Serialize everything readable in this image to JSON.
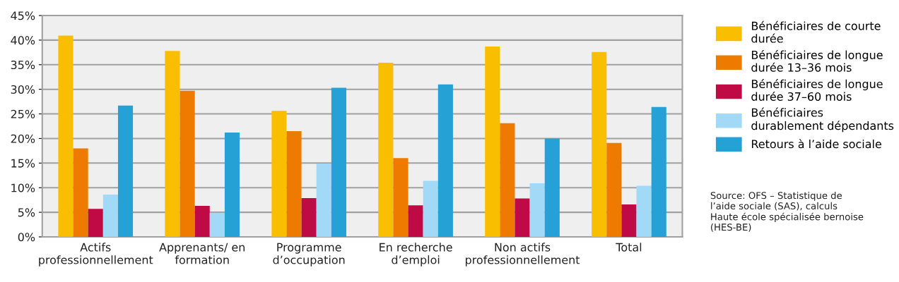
{
  "chart_data": {
    "type": "bar",
    "categories": [
      "Actifs professionnellement",
      "Apprenants/ en formation",
      "Programme d’occupation",
      "En recherche d’emploi",
      "Non actifs professionnellement",
      "Total"
    ],
    "series": [
      {
        "name": "Bénéficiaires de courte durée",
        "color": "#f9be00",
        "values": [
          40.9,
          37.8,
          25.6,
          35.4,
          38.7,
          37.6
        ]
      },
      {
        "name": "Bénéficiaires de longue durée 13–36 mois",
        "color": "#ee7b00",
        "values": [
          18.0,
          29.7,
          21.5,
          16.0,
          23.1,
          19.1
        ]
      },
      {
        "name": "Bénéficiaires de longue durée 37–60 mois",
        "color": "#c00a45",
        "values": [
          5.7,
          6.3,
          7.9,
          6.4,
          7.8,
          6.6
        ]
      },
      {
        "name": "Bénéficiaires durablement dépendants",
        "color": "#a2d9f7",
        "values": [
          8.6,
          4.9,
          14.9,
          11.4,
          10.9,
          10.4
        ]
      },
      {
        "name": "Retours à l’aide sociale",
        "color": "#26a1d5",
        "values": [
          26.7,
          21.2,
          30.3,
          31.0,
          20.0,
          26.4
        ]
      }
    ],
    "ylim": [
      0,
      45
    ],
    "yticks": [
      {
        "value": 0,
        "label": "0%"
      },
      {
        "value": 5,
        "label": "5%"
      },
      {
        "value": 10,
        "label": "10%"
      },
      {
        "value": 15,
        "label": "15%"
      },
      {
        "value": 20,
        "label": "20%"
      },
      {
        "value": 25,
        "label": "25%"
      },
      {
        "value": 30,
        "label": "30%"
      },
      {
        "value": 35,
        "label": "35%"
      },
      {
        "value": 40,
        "label": "40%"
      },
      {
        "value": 45,
        "label": "45%"
      }
    ],
    "grid": "y",
    "legend": "right",
    "annotations": [
      "Source: OFS – Statistique de l’aide sociale (SAS), calculs Haute école spécialisée bernoise (HES-BE)"
    ]
  }
}
